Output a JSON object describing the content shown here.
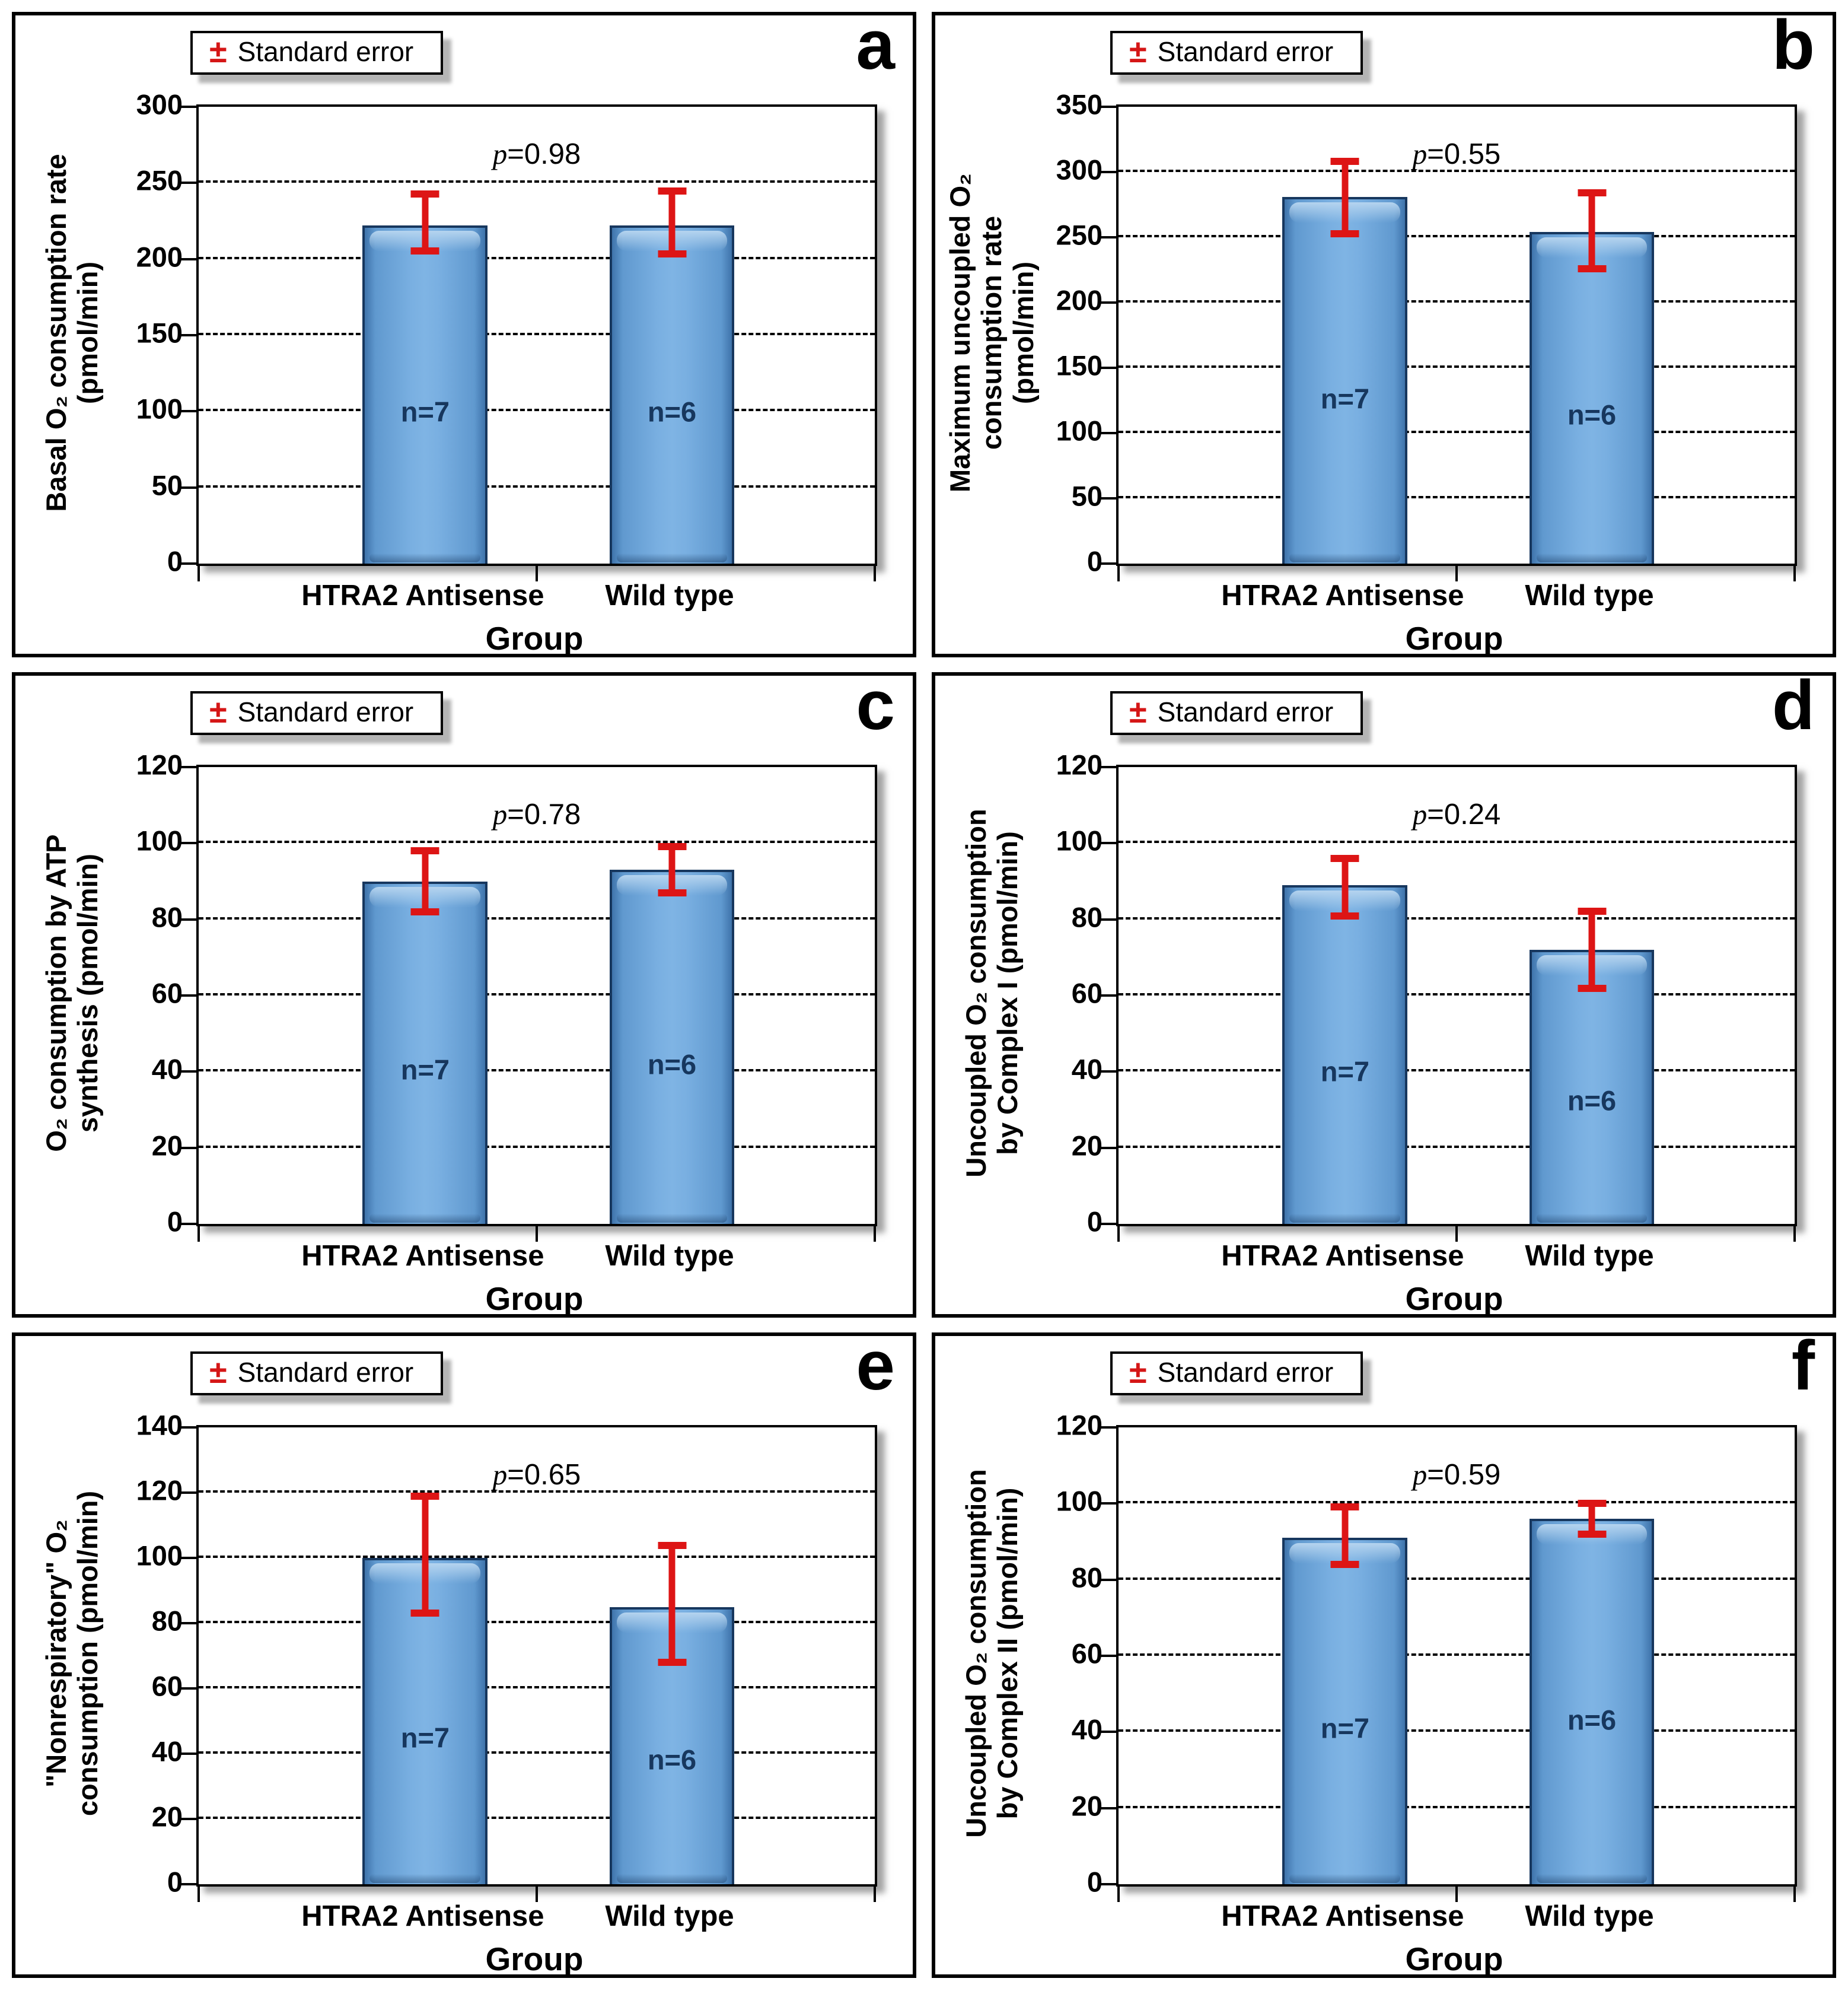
{
  "legend": {
    "symbol": "±",
    "label": "Standard error"
  },
  "x_axis": {
    "title": "Group",
    "categories": [
      "HTRA2 Antisense",
      "Wild type"
    ]
  },
  "colors": {
    "bar_fill_center": "#7FB4E4",
    "bar_fill_edge": "#3F74AB",
    "bar_outline": "#17375E",
    "bar_highlight": "#B5D4EF",
    "error_bar": "#DD1515",
    "n_label_text": "#17375E",
    "legend_symbol": "#D51616",
    "grid_color": "#000000"
  },
  "chart_data": [
    {
      "type": "bar",
      "panel_letter": "a",
      "ylabel": "Basal O₂ consumption rate (pmol/min)",
      "ylabel_lines": [
        "Basal O₂ consumption rate",
        "(pmol/min)"
      ],
      "xlabel": "Group",
      "categories": [
        "HTRA2 Antisense",
        "Wild type"
      ],
      "values": [
        222,
        222
      ],
      "error_low": [
        203,
        201
      ],
      "error_high": [
        245,
        247
      ],
      "n_labels": [
        "n=7",
        "n=6"
      ],
      "p_annotation": "p=0.98",
      "ylim": [
        0,
        300
      ],
      "yticks": [
        0,
        50,
        100,
        150,
        200,
        250,
        300
      ],
      "legend": "± Standard error",
      "grid": "horizontal-dashed"
    },
    {
      "type": "bar",
      "panel_letter": "b",
      "ylabel": "Maximum uncoupled O₂ consumption rate (pmol/min)",
      "ylabel_lines": [
        "Maximum uncoupled O₂",
        "consumption rate",
        "(pmol/min)"
      ],
      "xlabel": "Group",
      "categories": [
        "HTRA2 Antisense",
        "Wild type"
      ],
      "values": [
        281,
        254
      ],
      "error_low": [
        250,
        223
      ],
      "error_high": [
        311,
        287
      ],
      "n_labels": [
        "n=7",
        "n=6"
      ],
      "p_annotation": "p=0.55",
      "ylim": [
        0,
        350
      ],
      "yticks": [
        0,
        50,
        100,
        150,
        200,
        250,
        300,
        350
      ],
      "legend": "± Standard error",
      "grid": "horizontal-dashed"
    },
    {
      "type": "bar",
      "panel_letter": "c",
      "ylabel": "O₂ consumption by ATP synthesis (pmol/min)",
      "ylabel_lines": [
        "O₂ consumption by ATP",
        "synthesis (pmol/min)"
      ],
      "xlabel": "Group",
      "categories": [
        "HTRA2 Antisense",
        "Wild type"
      ],
      "values": [
        90,
        93
      ],
      "error_low": [
        81,
        86
      ],
      "error_high": [
        99,
        100
      ],
      "n_labels": [
        "n=7",
        "n=6"
      ],
      "p_annotation": "p=0.78",
      "ylim": [
        0,
        120
      ],
      "yticks": [
        0,
        20,
        40,
        60,
        80,
        100,
        120
      ],
      "legend": "± Standard error",
      "grid": "horizontal-dashed"
    },
    {
      "type": "bar",
      "panel_letter": "d",
      "ylabel": "Uncoupled O₂ consumption by Complex I (pmol/min)",
      "ylabel_lines": [
        "Uncoupled O₂ consumption",
        "by Complex I (pmol/min)"
      ],
      "xlabel": "Group",
      "categories": [
        "HTRA2 Antisense",
        "Wild type"
      ],
      "values": [
        89,
        72
      ],
      "error_low": [
        80,
        61
      ],
      "error_high": [
        97,
        83
      ],
      "n_labels": [
        "n=7",
        "n=6"
      ],
      "p_annotation": "p=0.24",
      "ylim": [
        0,
        120
      ],
      "yticks": [
        0,
        20,
        40,
        60,
        80,
        100,
        120
      ],
      "legend": "± Standard error",
      "grid": "horizontal-dashed"
    },
    {
      "type": "bar",
      "panel_letter": "e",
      "ylabel": "\"Nonrespiratory\" O₂ consumption (pmol/min)",
      "ylabel_lines": [
        "\"Nonrespiratory\"  O₂",
        "consumption (pmol/min)"
      ],
      "xlabel": "Group",
      "categories": [
        "HTRA2 Antisense",
        "Wild type"
      ],
      "values": [
        100,
        85
      ],
      "error_low": [
        82,
        67
      ],
      "error_high": [
        120,
        105
      ],
      "n_labels": [
        "n=7",
        "n=6"
      ],
      "p_annotation": "p=0.65",
      "ylim": [
        0,
        140
      ],
      "yticks": [
        0,
        20,
        40,
        60,
        80,
        100,
        120,
        140
      ],
      "legend": "± Standard error",
      "grid": "horizontal-dashed"
    },
    {
      "type": "bar",
      "panel_letter": "f",
      "ylabel": "Uncoupled O₂ consumption by Complex II (pmol/min)",
      "ylabel_lines": [
        "Uncoupled O₂ consumption",
        "by Complex II (pmol/min)"
      ],
      "xlabel": "Group",
      "categories": [
        "HTRA2 Antisense",
        "Wild type"
      ],
      "values": [
        91,
        96
      ],
      "error_low": [
        83,
        91
      ],
      "error_high": [
        100,
        101
      ],
      "n_labels": [
        "n=7",
        "n=6"
      ],
      "p_annotation": "p=0.59",
      "ylim": [
        0,
        120
      ],
      "yticks": [
        0,
        20,
        40,
        60,
        80,
        100,
        120
      ],
      "legend": "± Standard error",
      "grid": "horizontal-dashed"
    }
  ]
}
